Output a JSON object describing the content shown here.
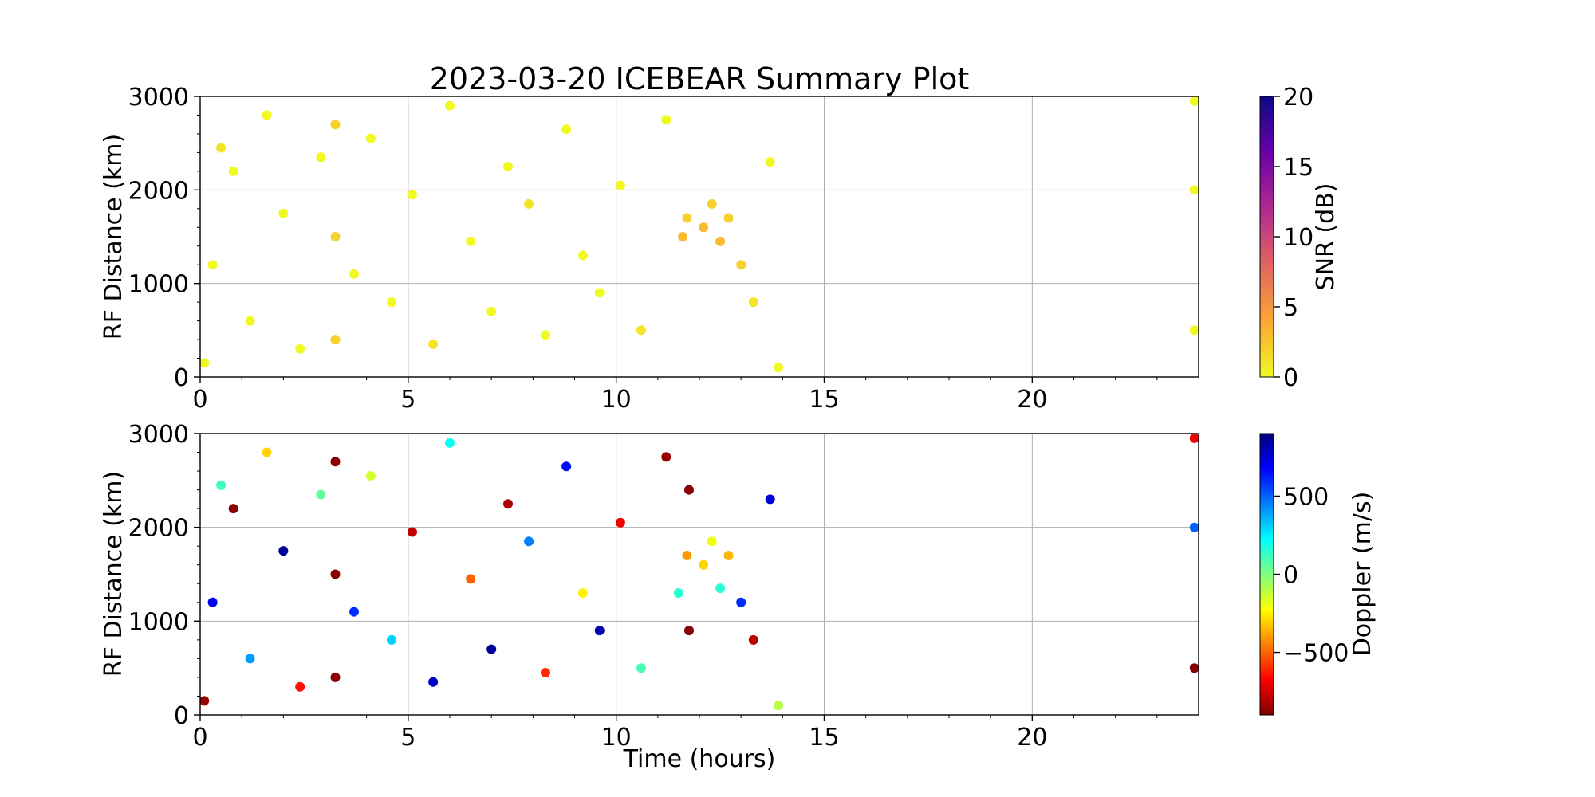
{
  "figure_title": "2023-03-20 ICEBEAR Summary Plot",
  "chart_data": [
    {
      "type": "scatter",
      "panel": "snr",
      "xlabel": "",
      "ylabel": "RF Distance (km)",
      "xlim": [
        0,
        24
      ],
      "ylim": [
        0,
        3000
      ],
      "xticks": [
        0,
        5,
        10,
        15,
        20
      ],
      "yticks": [
        0,
        1000,
        2000,
        3000
      ],
      "grid": true,
      "colorbar": {
        "label": "SNR (dB)",
        "range": [
          0,
          20
        ],
        "ticks": [
          0,
          5,
          10,
          15,
          20
        ],
        "colormap": "plasma_r",
        "stops": [
          "#f0f921",
          "#fca636",
          "#e16462",
          "#b12a90",
          "#6a00a8",
          "#0d0887"
        ]
      },
      "points": [
        [
          0.1,
          150,
          0
        ],
        [
          0.3,
          1200,
          0
        ],
        [
          0.5,
          2450,
          1
        ],
        [
          0.8,
          2200,
          0
        ],
        [
          1.2,
          600,
          0
        ],
        [
          1.6,
          2800,
          0
        ],
        [
          2.0,
          1750,
          0
        ],
        [
          2.4,
          300,
          0
        ],
        [
          2.9,
          2350,
          0
        ],
        [
          3.25,
          400,
          2
        ],
        [
          3.25,
          1500,
          2
        ],
        [
          3.25,
          2700,
          2
        ],
        [
          3.7,
          1100,
          0
        ],
        [
          4.1,
          2550,
          0
        ],
        [
          4.6,
          800,
          0
        ],
        [
          5.1,
          1950,
          0
        ],
        [
          5.6,
          350,
          1
        ],
        [
          6.0,
          2900,
          0
        ],
        [
          6.5,
          1450,
          0
        ],
        [
          7.0,
          700,
          0
        ],
        [
          7.4,
          2250,
          0
        ],
        [
          7.9,
          1850,
          1
        ],
        [
          8.3,
          450,
          0
        ],
        [
          8.8,
          2650,
          0
        ],
        [
          9.2,
          1300,
          0
        ],
        [
          9.6,
          900,
          0
        ],
        [
          10.1,
          2050,
          0
        ],
        [
          10.6,
          500,
          1
        ],
        [
          11.2,
          2750,
          0
        ],
        [
          11.6,
          1500,
          3
        ],
        [
          11.7,
          1700,
          2
        ],
        [
          12.1,
          1600,
          3
        ],
        [
          12.3,
          1850,
          2
        ],
        [
          12.5,
          1450,
          3
        ],
        [
          12.7,
          1700,
          2
        ],
        [
          13.0,
          1200,
          2
        ],
        [
          13.3,
          800,
          1
        ],
        [
          13.7,
          2300,
          0
        ],
        [
          13.9,
          100,
          0
        ],
        [
          23.9,
          500,
          0
        ],
        [
          23.9,
          2000,
          0
        ],
        [
          23.9,
          2950,
          0
        ]
      ]
    },
    {
      "type": "scatter",
      "panel": "doppler",
      "xlabel": "Time (hours)",
      "ylabel": "RF Distance (km)",
      "xlim": [
        0,
        24
      ],
      "ylim": [
        0,
        3000
      ],
      "xticks": [
        0,
        5,
        10,
        15,
        20
      ],
      "yticks": [
        0,
        1000,
        2000,
        3000
      ],
      "grid": true,
      "colorbar": {
        "label": "Doppler (m/s)",
        "range": [
          -900,
          900
        ],
        "ticks": [
          -500,
          0,
          500
        ],
        "tick_labels": [
          "−500",
          "0",
          "500"
        ],
        "colormap": "jet_r",
        "stops": [
          "#7f0000",
          "#ff0000",
          "#ff7f00",
          "#ffff00",
          "#7fff7f",
          "#00ffff",
          "#007fff",
          "#0000ff",
          "#00007f"
        ]
      },
      "points": [
        [
          0.1,
          150,
          -850
        ],
        [
          0.3,
          1200,
          700
        ],
        [
          0.5,
          2450,
          120
        ],
        [
          0.8,
          2200,
          -880
        ],
        [
          1.2,
          600,
          400
        ],
        [
          1.6,
          2800,
          -300
        ],
        [
          2.0,
          1750,
          850
        ],
        [
          2.4,
          300,
          -650
        ],
        [
          2.9,
          2350,
          50
        ],
        [
          3.25,
          400,
          -880
        ],
        [
          3.25,
          1500,
          -880
        ],
        [
          3.25,
          2700,
          -880
        ],
        [
          3.7,
          1100,
          600
        ],
        [
          4.1,
          2550,
          -150
        ],
        [
          4.6,
          800,
          300
        ],
        [
          5.1,
          1950,
          -780
        ],
        [
          5.6,
          350,
          780
        ],
        [
          6.0,
          2900,
          200
        ],
        [
          6.5,
          1450,
          -500
        ],
        [
          7.0,
          700,
          860
        ],
        [
          7.4,
          2250,
          -820
        ],
        [
          7.9,
          1850,
          450
        ],
        [
          8.3,
          450,
          -600
        ],
        [
          8.8,
          2650,
          650
        ],
        [
          9.2,
          1300,
          -250
        ],
        [
          9.6,
          900,
          820
        ],
        [
          10.1,
          2050,
          -700
        ],
        [
          10.6,
          500,
          100
        ],
        [
          11.2,
          2750,
          -850
        ],
        [
          11.5,
          1300,
          150
        ],
        [
          11.7,
          1700,
          -400
        ],
        [
          11.75,
          900,
          -880
        ],
        [
          11.75,
          2400,
          -880
        ],
        [
          12.1,
          1600,
          -300
        ],
        [
          12.3,
          1850,
          -200
        ],
        [
          12.5,
          1350,
          150
        ],
        [
          12.7,
          1700,
          -350
        ],
        [
          13.0,
          1200,
          600
        ],
        [
          13.3,
          800,
          -800
        ],
        [
          13.7,
          2300,
          750
        ],
        [
          13.9,
          100,
          -100
        ],
        [
          23.9,
          500,
          -880
        ],
        [
          23.9,
          2000,
          500
        ],
        [
          23.9,
          2950,
          -700
        ]
      ]
    }
  ]
}
